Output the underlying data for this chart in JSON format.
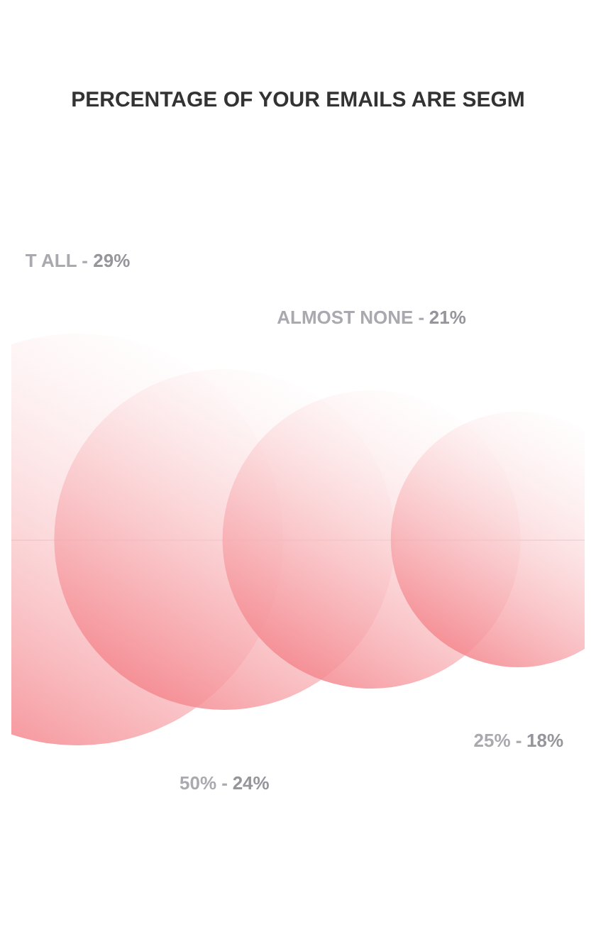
{
  "chart_data": {
    "type": "other",
    "title": "PERCENTAGE OF YOUR EMAILS ARE SEGM",
    "categories": [
      "T ALL -",
      "50% -",
      "ALMOST NONE -",
      "25% -"
    ],
    "values": [
      29,
      24,
      21,
      18
    ],
    "value_labels": [
      "29%",
      "24%",
      "21%",
      "18%"
    ],
    "color": "#f37f86"
  }
}
